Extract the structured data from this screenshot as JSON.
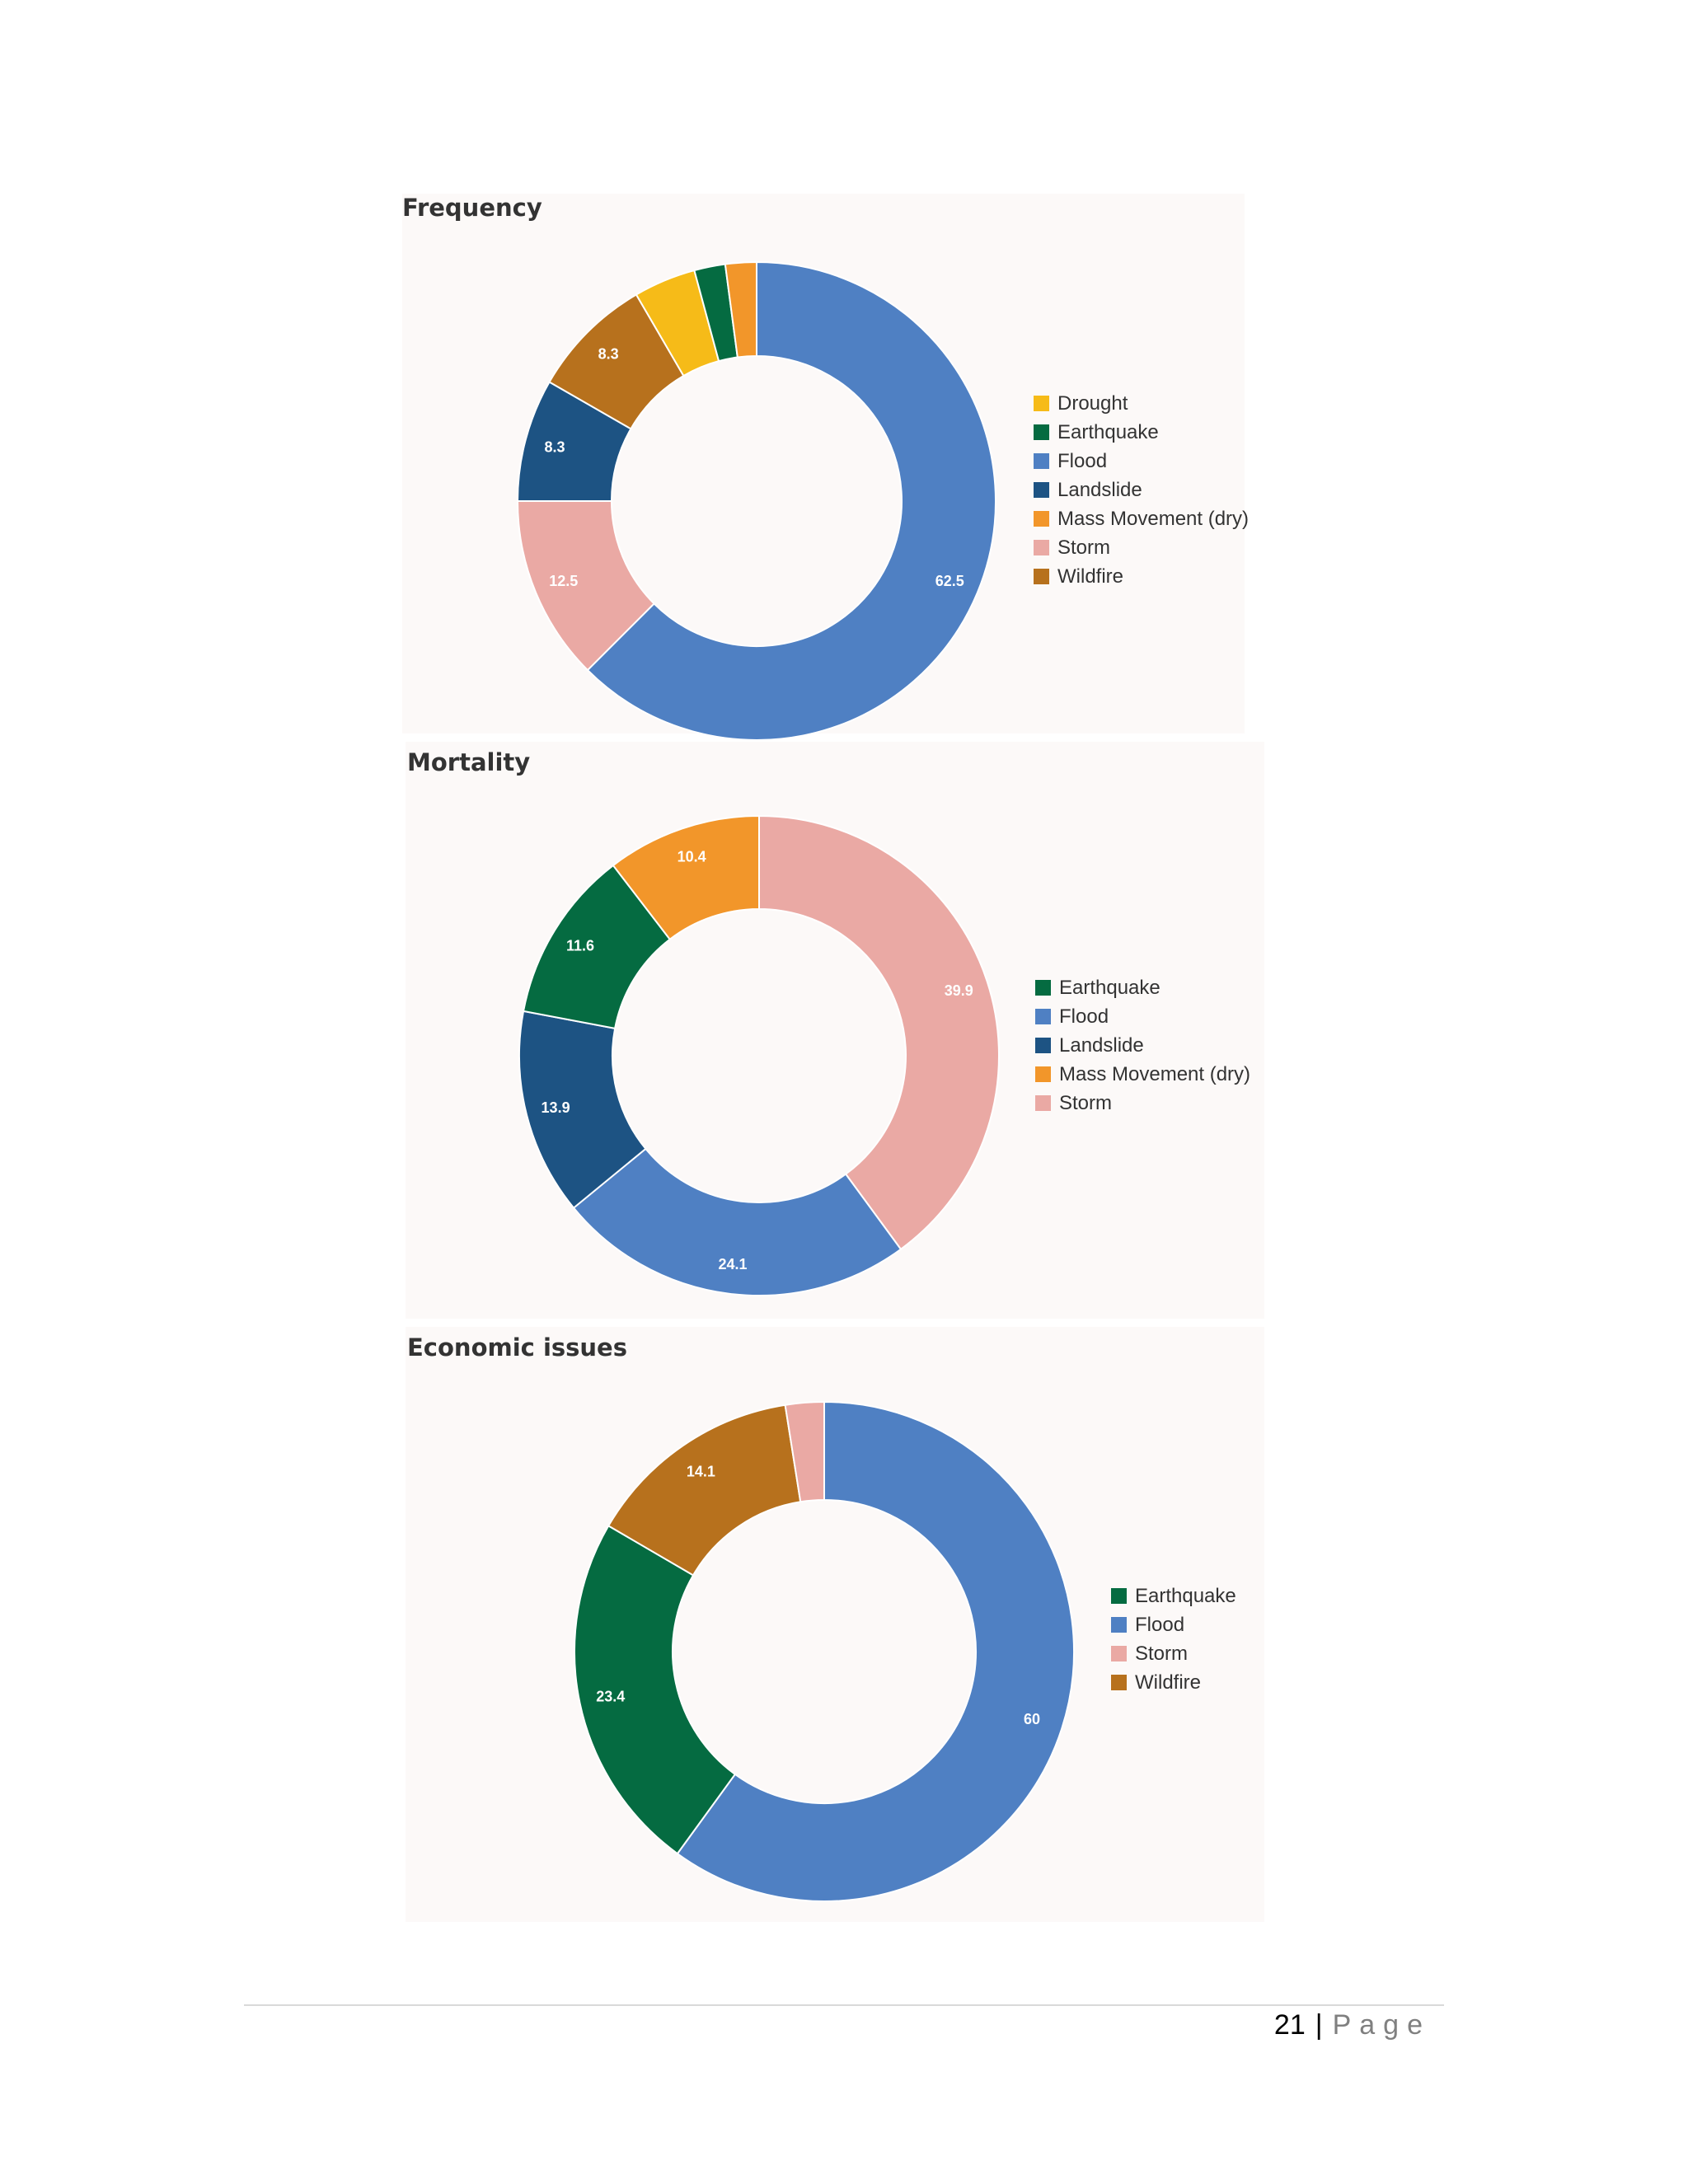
{
  "colors": {
    "Drought": "#f6bb18",
    "Earthquake": "#056b41",
    "Flood": "#4f80c3",
    "Landslide": "#1d5383",
    "Mass Movement (dry)": "#f2962a",
    "Storm": "#eaa9a4",
    "Wildfire": "#b7711d"
  },
  "chart_data": [
    {
      "type": "pie",
      "title": "Frequency",
      "legend_position": "right",
      "slices": [
        {
          "name": "Flood",
          "value": 62.5,
          "label": "62.5"
        },
        {
          "name": "Storm",
          "value": 12.5,
          "label": "12.5"
        },
        {
          "name": "Landslide",
          "value": 8.3,
          "label": "8.3"
        },
        {
          "name": "Wildfire",
          "value": 8.3,
          "label": "8.3"
        },
        {
          "name": "Drought",
          "value": 4.2,
          "label": ""
        },
        {
          "name": "Earthquake",
          "value": 2.1,
          "label": ""
        },
        {
          "name": "Mass Movement (dry)",
          "value": 2.1,
          "label": ""
        }
      ],
      "legend": [
        "Drought",
        "Earthquake",
        "Flood",
        "Landslide",
        "Mass Movement (dry)",
        "Storm",
        "Wildfire"
      ]
    },
    {
      "type": "pie",
      "title": "Mortality",
      "legend_position": "right",
      "slices": [
        {
          "name": "Storm",
          "value": 39.9,
          "label": "39.9"
        },
        {
          "name": "Flood",
          "value": 24.1,
          "label": "24.1"
        },
        {
          "name": "Landslide",
          "value": 13.9,
          "label": "13.9"
        },
        {
          "name": "Earthquake",
          "value": 11.6,
          "label": "11.6"
        },
        {
          "name": "Mass Movement (dry)",
          "value": 10.4,
          "label": "10.4"
        }
      ],
      "legend": [
        "Earthquake",
        "Flood",
        "Landslide",
        "Mass Movement (dry)",
        "Storm"
      ]
    },
    {
      "type": "pie",
      "title": "Economic issues",
      "legend_position": "right",
      "slices": [
        {
          "name": "Flood",
          "value": 60,
          "label": "60"
        },
        {
          "name": "Earthquake",
          "value": 23.4,
          "label": "23.4"
        },
        {
          "name": "Wildfire",
          "value": 14.1,
          "label": "14.1"
        },
        {
          "name": "Storm",
          "value": 2.5,
          "label": ""
        }
      ],
      "legend": [
        "Earthquake",
        "Flood",
        "Storm",
        "Wildfire"
      ]
    }
  ],
  "footer": {
    "page_number": "21",
    "separator": "|",
    "page_word": "Page"
  }
}
